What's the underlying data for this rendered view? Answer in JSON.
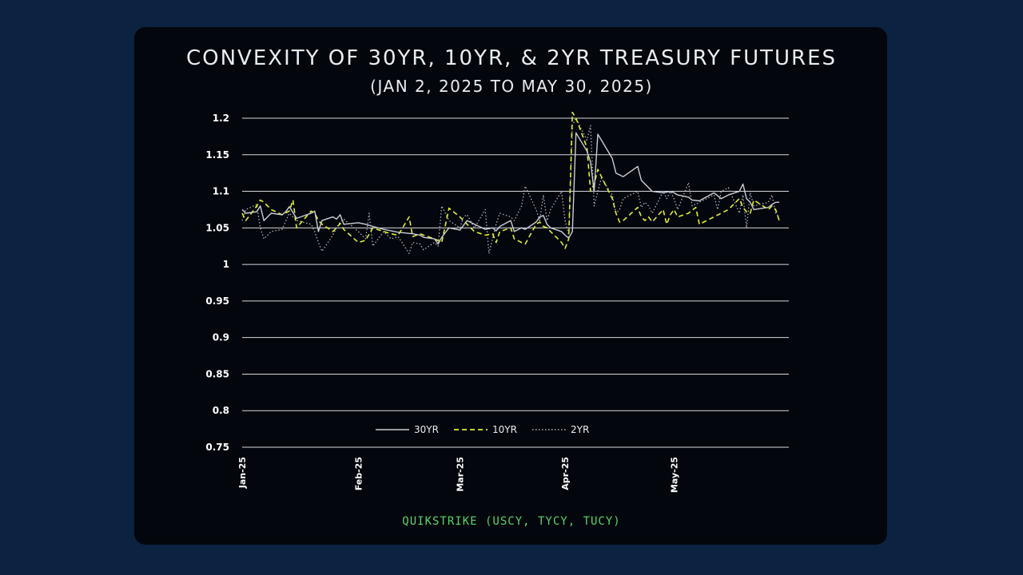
{
  "header": {
    "title": "CONVEXITY OF 30YR, 10YR, & 2YR TREASURY FUTURES",
    "subtitle": "(JAN 2, 2025 TO MAY 30, 2025)"
  },
  "footer": {
    "source": "QUIKSTRIKE (USCY, TYCY, TUCY)"
  },
  "colors": {
    "series_30yr": "#c9ced6",
    "series_10yr": "#e3ee2e",
    "series_2yr": "#aeb4bd",
    "grid": "#d5d8dd"
  },
  "chart_data": {
    "type": "line",
    "title": "CONVEXITY OF 30YR, 10YR, & 2YR TREASURY FUTURES",
    "subtitle": "(JAN 2, 2025 TO MAY 30, 2025)",
    "xlabel": "",
    "ylabel": "",
    "ylim": [
      0.75,
      1.2
    ],
    "yticks": [
      0.75,
      0.8,
      0.85,
      0.9,
      0.95,
      1,
      1.05,
      1.1,
      1.15,
      1.2
    ],
    "ytick_labels": [
      "0.75",
      "0.8",
      "0.85",
      "0.9",
      "0.95",
      "1",
      "1.05",
      "1.1",
      "1.15",
      "1.2"
    ],
    "xlim": [
      "2025-01-02",
      "2025-05-30"
    ],
    "xticks": [
      "2025-01-02",
      "2025-02-03",
      "2025-03-03",
      "2025-04-01",
      "2025-05-01"
    ],
    "xtick_labels": [
      "Jan-25",
      "Feb-25",
      "Mar-25",
      "Apr-25",
      "May-25"
    ],
    "grid": true,
    "legend_position": "bottom-center",
    "series": [
      {
        "name": "30YR",
        "style": "solid",
        "points": [
          [
            "2025-01-02",
            1.075
          ],
          [
            "2025-01-03",
            1.07
          ],
          [
            "2025-01-06",
            1.072
          ],
          [
            "2025-01-07",
            1.08
          ],
          [
            "2025-01-08",
            1.06
          ],
          [
            "2025-01-10",
            1.07
          ],
          [
            "2025-01-13",
            1.068
          ],
          [
            "2025-01-14",
            1.072
          ],
          [
            "2025-01-15",
            1.079
          ],
          [
            "2025-01-17",
            1.063
          ],
          [
            "2025-01-21",
            1.07
          ],
          [
            "2025-01-22",
            1.073
          ],
          [
            "2025-01-23",
            1.045
          ],
          [
            "2025-01-24",
            1.06
          ],
          [
            "2025-01-27",
            1.065
          ],
          [
            "2025-01-28",
            1.062
          ],
          [
            "2025-01-29",
            1.068
          ],
          [
            "2025-01-30",
            1.055
          ],
          [
            "2025-02-03",
            1.057
          ],
          [
            "2025-02-05",
            1.055
          ],
          [
            "2025-02-07",
            1.052
          ],
          [
            "2025-02-10",
            1.048
          ],
          [
            "2025-02-12",
            1.046
          ],
          [
            "2025-02-14",
            1.044
          ],
          [
            "2025-02-18",
            1.042
          ],
          [
            "2025-02-20",
            1.04
          ],
          [
            "2025-02-21",
            1.037
          ],
          [
            "2025-02-24",
            1.035
          ],
          [
            "2025-02-25",
            1.028
          ],
          [
            "2025-02-26",
            1.037
          ],
          [
            "2025-02-28",
            1.05
          ],
          [
            "2025-03-03",
            1.047
          ],
          [
            "2025-03-05",
            1.06
          ],
          [
            "2025-03-07",
            1.055
          ],
          [
            "2025-03-10",
            1.048
          ],
          [
            "2025-03-12",
            1.05
          ],
          [
            "2025-03-13",
            1.046
          ],
          [
            "2025-03-14",
            1.052
          ],
          [
            "2025-03-17",
            1.06
          ],
          [
            "2025-03-18",
            1.045
          ],
          [
            "2025-03-20",
            1.05
          ],
          [
            "2025-03-21",
            1.048
          ],
          [
            "2025-03-24",
            1.058
          ],
          [
            "2025-03-25",
            1.065
          ],
          [
            "2025-03-26",
            1.067
          ],
          [
            "2025-03-27",
            1.055
          ],
          [
            "2025-03-28",
            1.05
          ],
          [
            "2025-03-31",
            1.045
          ],
          [
            "2025-04-01",
            1.04
          ],
          [
            "2025-04-02",
            1.036
          ],
          [
            "2025-04-03",
            1.045
          ],
          [
            "2025-04-04",
            1.18
          ],
          [
            "2025-04-07",
            1.155
          ],
          [
            "2025-04-08",
            1.14
          ],
          [
            "2025-04-09",
            1.1
          ],
          [
            "2025-04-10",
            1.178
          ],
          [
            "2025-04-11",
            1.17
          ],
          [
            "2025-04-14",
            1.145
          ],
          [
            "2025-04-15",
            1.125
          ],
          [
            "2025-04-17",
            1.12
          ],
          [
            "2025-04-21",
            1.134
          ],
          [
            "2025-04-22",
            1.115
          ],
          [
            "2025-04-23",
            1.11
          ],
          [
            "2025-04-25",
            1.1
          ],
          [
            "2025-04-28",
            1.098
          ],
          [
            "2025-04-30",
            1.1
          ],
          [
            "2025-05-01",
            1.098
          ],
          [
            "2025-05-02",
            1.095
          ],
          [
            "2025-05-05",
            1.092
          ],
          [
            "2025-05-06",
            1.088
          ],
          [
            "2025-05-08",
            1.087
          ],
          [
            "2025-05-12",
            1.098
          ],
          [
            "2025-05-14",
            1.09
          ],
          [
            "2025-05-16",
            1.095
          ],
          [
            "2025-05-19",
            1.1
          ],
          [
            "2025-05-20",
            1.11
          ],
          [
            "2025-05-21",
            1.09
          ],
          [
            "2025-05-22",
            1.085
          ],
          [
            "2025-05-23",
            1.075
          ],
          [
            "2025-05-27",
            1.078
          ],
          [
            "2025-05-28",
            1.082
          ],
          [
            "2025-05-29",
            1.085
          ],
          [
            "2025-05-30",
            1.085
          ]
        ]
      },
      {
        "name": "10YR",
        "style": "dashed",
        "points": [
          [
            "2025-01-02",
            1.07
          ],
          [
            "2025-01-03",
            1.06
          ],
          [
            "2025-01-06",
            1.08
          ],
          [
            "2025-01-07",
            1.088
          ],
          [
            "2025-01-08",
            1.085
          ],
          [
            "2025-01-10",
            1.075
          ],
          [
            "2025-01-13",
            1.068
          ],
          [
            "2025-01-15",
            1.073
          ],
          [
            "2025-01-16",
            1.088
          ],
          [
            "2025-01-17",
            1.05
          ],
          [
            "2025-01-21",
            1.073
          ],
          [
            "2025-01-22",
            1.07
          ],
          [
            "2025-01-23",
            1.06
          ],
          [
            "2025-01-24",
            1.055
          ],
          [
            "2025-01-27",
            1.045
          ],
          [
            "2025-01-28",
            1.05
          ],
          [
            "2025-01-29",
            1.056
          ],
          [
            "2025-01-30",
            1.048
          ],
          [
            "2025-02-03",
            1.03
          ],
          [
            "2025-02-05",
            1.033
          ],
          [
            "2025-02-07",
            1.05
          ],
          [
            "2025-02-10",
            1.045
          ],
          [
            "2025-02-12",
            1.042
          ],
          [
            "2025-02-14",
            1.04
          ],
          [
            "2025-02-17",
            1.065
          ],
          [
            "2025-02-18",
            1.038
          ],
          [
            "2025-02-20",
            1.042
          ],
          [
            "2025-02-21",
            1.04
          ],
          [
            "2025-02-24",
            1.035
          ],
          [
            "2025-02-26",
            1.03
          ],
          [
            "2025-02-28",
            1.077
          ],
          [
            "2025-03-03",
            1.065
          ],
          [
            "2025-03-05",
            1.055
          ],
          [
            "2025-03-07",
            1.045
          ],
          [
            "2025-03-10",
            1.04
          ],
          [
            "2025-03-12",
            1.042
          ],
          [
            "2025-03-13",
            1.03
          ],
          [
            "2025-03-14",
            1.045
          ],
          [
            "2025-03-17",
            1.05
          ],
          [
            "2025-03-18",
            1.035
          ],
          [
            "2025-03-20",
            1.03
          ],
          [
            "2025-03-21",
            1.028
          ],
          [
            "2025-03-24",
            1.055
          ],
          [
            "2025-03-25",
            1.058
          ],
          [
            "2025-03-26",
            1.052
          ],
          [
            "2025-03-27",
            1.05
          ],
          [
            "2025-03-28",
            1.045
          ],
          [
            "2025-03-31",
            1.03
          ],
          [
            "2025-04-01",
            1.022
          ],
          [
            "2025-04-02",
            1.035
          ],
          [
            "2025-04-03",
            1.208
          ],
          [
            "2025-04-04",
            1.2
          ],
          [
            "2025-04-07",
            1.16
          ],
          [
            "2025-04-08",
            1.1
          ],
          [
            "2025-04-09",
            1.11
          ],
          [
            "2025-04-10",
            1.13
          ],
          [
            "2025-04-11",
            1.12
          ],
          [
            "2025-04-14",
            1.09
          ],
          [
            "2025-04-15",
            1.07
          ],
          [
            "2025-04-16",
            1.058
          ],
          [
            "2025-04-17",
            1.06
          ],
          [
            "2025-04-21",
            1.078
          ],
          [
            "2025-04-22",
            1.065
          ],
          [
            "2025-04-23",
            1.06
          ],
          [
            "2025-04-24",
            1.065
          ],
          [
            "2025-04-25",
            1.058
          ],
          [
            "2025-04-28",
            1.075
          ],
          [
            "2025-04-29",
            1.055
          ],
          [
            "2025-04-30",
            1.068
          ],
          [
            "2025-05-01",
            1.075
          ],
          [
            "2025-05-02",
            1.065
          ],
          [
            "2025-05-05",
            1.07
          ],
          [
            "2025-05-07",
            1.078
          ],
          [
            "2025-05-08",
            1.055
          ],
          [
            "2025-05-12",
            1.065
          ],
          [
            "2025-05-14",
            1.07
          ],
          [
            "2025-05-16",
            1.075
          ],
          [
            "2025-05-19",
            1.09
          ],
          [
            "2025-05-20",
            1.078
          ],
          [
            "2025-05-21",
            1.072
          ],
          [
            "2025-05-22",
            1.07
          ],
          [
            "2025-05-23",
            1.088
          ],
          [
            "2025-05-27",
            1.075
          ],
          [
            "2025-05-28",
            1.08
          ],
          [
            "2025-05-29",
            1.075
          ],
          [
            "2025-05-30",
            1.06
          ]
        ]
      },
      {
        "name": "2YR",
        "style": "dotted",
        "points": [
          [
            "2025-01-02",
            1.06
          ],
          [
            "2025-01-03",
            1.075
          ],
          [
            "2025-01-06",
            1.082
          ],
          [
            "2025-01-07",
            1.05
          ],
          [
            "2025-01-08",
            1.035
          ],
          [
            "2025-01-10",
            1.045
          ],
          [
            "2025-01-13",
            1.048
          ],
          [
            "2025-01-15",
            1.07
          ],
          [
            "2025-01-17",
            1.06
          ],
          [
            "2025-01-21",
            1.055
          ],
          [
            "2025-01-22",
            1.045
          ],
          [
            "2025-01-23",
            1.03
          ],
          [
            "2025-01-24",
            1.018
          ],
          [
            "2025-01-27",
            1.04
          ],
          [
            "2025-01-28",
            1.05
          ],
          [
            "2025-01-29",
            1.058
          ],
          [
            "2025-01-30",
            1.062
          ],
          [
            "2025-02-03",
            1.045
          ],
          [
            "2025-02-05",
            1.035
          ],
          [
            "2025-02-06",
            1.07
          ],
          [
            "2025-02-07",
            1.025
          ],
          [
            "2025-02-10",
            1.045
          ],
          [
            "2025-02-12",
            1.035
          ],
          [
            "2025-02-14",
            1.038
          ],
          [
            "2025-02-17",
            1.015
          ],
          [
            "2025-02-18",
            1.03
          ],
          [
            "2025-02-20",
            1.028
          ],
          [
            "2025-02-21",
            1.02
          ],
          [
            "2025-02-24",
            1.03
          ],
          [
            "2025-02-25",
            1.025
          ],
          [
            "2025-02-26",
            1.08
          ],
          [
            "2025-02-28",
            1.06
          ],
          [
            "2025-03-03",
            1.05
          ],
          [
            "2025-03-04",
            1.065
          ],
          [
            "2025-03-05",
            1.068
          ],
          [
            "2025-03-07",
            1.05
          ],
          [
            "2025-03-10",
            1.075
          ],
          [
            "2025-03-11",
            1.015
          ],
          [
            "2025-03-12",
            1.035
          ],
          [
            "2025-03-13",
            1.055
          ],
          [
            "2025-03-14",
            1.07
          ],
          [
            "2025-03-17",
            1.065
          ],
          [
            "2025-03-18",
            1.06
          ],
          [
            "2025-03-20",
            1.08
          ],
          [
            "2025-03-21",
            1.107
          ],
          [
            "2025-03-24",
            1.075
          ],
          [
            "2025-03-25",
            1.06
          ],
          [
            "2025-03-26",
            1.095
          ],
          [
            "2025-03-27",
            1.06
          ],
          [
            "2025-03-28",
            1.075
          ],
          [
            "2025-03-31",
            1.1
          ],
          [
            "2025-04-01",
            1.06
          ],
          [
            "2025-04-02",
            1.04
          ],
          [
            "2025-04-03",
            1.19
          ],
          [
            "2025-04-04",
            1.2
          ],
          [
            "2025-04-07",
            1.17
          ],
          [
            "2025-04-08",
            1.19
          ],
          [
            "2025-04-09",
            1.08
          ],
          [
            "2025-04-10",
            1.1
          ],
          [
            "2025-04-11",
            1.118
          ],
          [
            "2025-04-14",
            1.095
          ],
          [
            "2025-04-15",
            1.07
          ],
          [
            "2025-04-16",
            1.075
          ],
          [
            "2025-04-17",
            1.09
          ],
          [
            "2025-04-21",
            1.1
          ],
          [
            "2025-04-22",
            1.078
          ],
          [
            "2025-04-23",
            1.085
          ],
          [
            "2025-04-24",
            1.08
          ],
          [
            "2025-04-25",
            1.07
          ],
          [
            "2025-04-28",
            1.1
          ],
          [
            "2025-04-29",
            1.09
          ],
          [
            "2025-04-30",
            1.1
          ],
          [
            "2025-05-01",
            1.09
          ],
          [
            "2025-05-02",
            1.075
          ],
          [
            "2025-05-05",
            1.112
          ],
          [
            "2025-05-06",
            1.08
          ],
          [
            "2025-05-08",
            1.085
          ],
          [
            "2025-05-12",
            1.095
          ],
          [
            "2025-05-13",
            1.075
          ],
          [
            "2025-05-14",
            1.1
          ],
          [
            "2025-05-16",
            1.105
          ],
          [
            "2025-05-19",
            1.07
          ],
          [
            "2025-05-20",
            1.095
          ],
          [
            "2025-05-21",
            1.05
          ],
          [
            "2025-05-22",
            1.098
          ],
          [
            "2025-05-23",
            1.08
          ],
          [
            "2025-05-27",
            1.085
          ],
          [
            "2025-05-28",
            1.095
          ],
          [
            "2025-05-29",
            1.07
          ],
          [
            "2025-05-30",
            1.065
          ]
        ]
      }
    ]
  }
}
